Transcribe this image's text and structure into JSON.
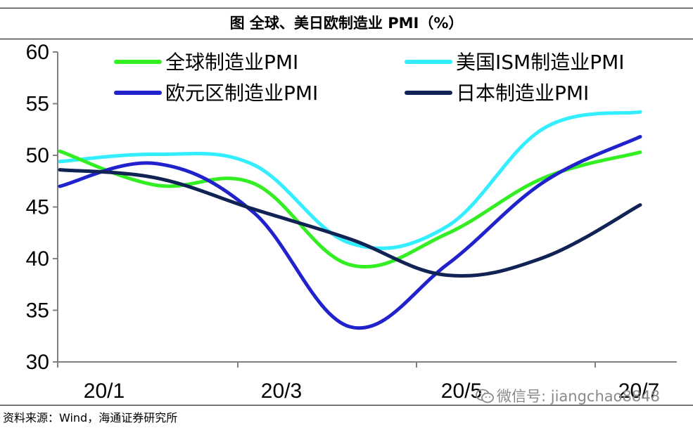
{
  "header": {
    "title": "图  全球、美日欧制造业 PMI（%）"
  },
  "footer": {
    "source": "资料来源：Wind，海通证券研究所"
  },
  "watermark": {
    "text": "微信号: jiangchao8848",
    "icon": "wechat-icon"
  },
  "chart_data": {
    "type": "line",
    "title": "图  全球、美日欧制造业 PMI（%）",
    "xlabel": "",
    "ylabel": "",
    "ylim": [
      30,
      60
    ],
    "yticks": [
      30,
      35,
      40,
      45,
      50,
      55,
      60
    ],
    "x": [
      "2020-01",
      "2020-02",
      "2020-03",
      "2020-04",
      "2020-05",
      "2020-06",
      "2020-07"
    ],
    "xtick_labels": [
      "20/1",
      "20/3",
      "20/5",
      "20/7"
    ],
    "legend_position": "top",
    "grid": false,
    "series": [
      {
        "name": "全球制造业PMI",
        "color": "#33ee22",
        "values": [
          50.4,
          47.1,
          47.3,
          39.4,
          42.4,
          47.8,
          50.3
        ]
      },
      {
        "name": "美国ISM制造业PMI",
        "color": "#33eeff",
        "values": [
          49.4,
          50.1,
          49.1,
          41.5,
          43.1,
          52.6,
          54.2
        ]
      },
      {
        "name": "欧元区制造业PMI",
        "color": "#2222cc",
        "values": [
          47.0,
          49.2,
          44.5,
          33.4,
          39.4,
          47.4,
          51.8
        ]
      },
      {
        "name": "日本制造业PMI",
        "color": "#112255",
        "values": [
          48.6,
          47.8,
          44.8,
          41.9,
          38.4,
          40.1,
          45.2
        ]
      }
    ]
  }
}
